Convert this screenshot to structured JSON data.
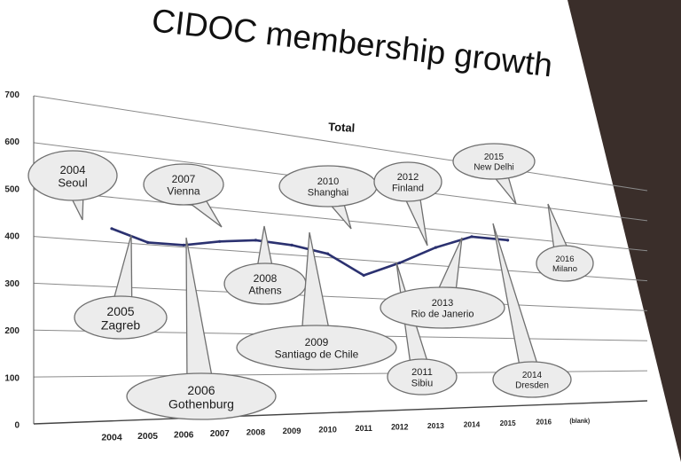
{
  "slide": {
    "title": "CIDOC membership growth"
  },
  "chart_data": {
    "type": "line",
    "title": "Total",
    "x": [
      "2004",
      "2005",
      "2006",
      "2007",
      "2008",
      "2009",
      "2010",
      "2011",
      "2012",
      "2013",
      "2014",
      "2015",
      "2016",
      "(blank)"
    ],
    "ylim": [
      0,
      700
    ],
    "yticks": [
      0,
      100,
      200,
      300,
      400,
      500,
      600,
      700
    ],
    "grid": true,
    "series": [
      {
        "values": [
          430,
          405,
          405,
          420,
          430,
          425,
          410,
          360,
          400,
          450,
          490,
          490,
          null,
          null
        ]
      }
    ],
    "annotations": [
      {
        "year": "2004",
        "city": "Seoul"
      },
      {
        "year": "2005",
        "city": "Zagreb"
      },
      {
        "year": "2006",
        "city": "Gothenburg"
      },
      {
        "year": "2007",
        "city": "Vienna"
      },
      {
        "year": "2008",
        "city": "Athens"
      },
      {
        "year": "2009",
        "city": "Santiago de Chile"
      },
      {
        "year": "2010",
        "city": "Shanghai"
      },
      {
        "year": "2011",
        "city": "Sibiu"
      },
      {
        "year": "2012",
        "city": "Finland"
      },
      {
        "year": "2013",
        "city": "Rio de Janerio"
      },
      {
        "year": "2014",
        "city": "Dresden"
      },
      {
        "year": "2015",
        "city": "New Delhi"
      },
      {
        "year": "2016",
        "city": "Milano"
      }
    ],
    "colors": {
      "line": "#2b3170",
      "slide": "#ffffff",
      "background": "#3a2e2a",
      "grid": "#8a8a8a"
    }
  }
}
